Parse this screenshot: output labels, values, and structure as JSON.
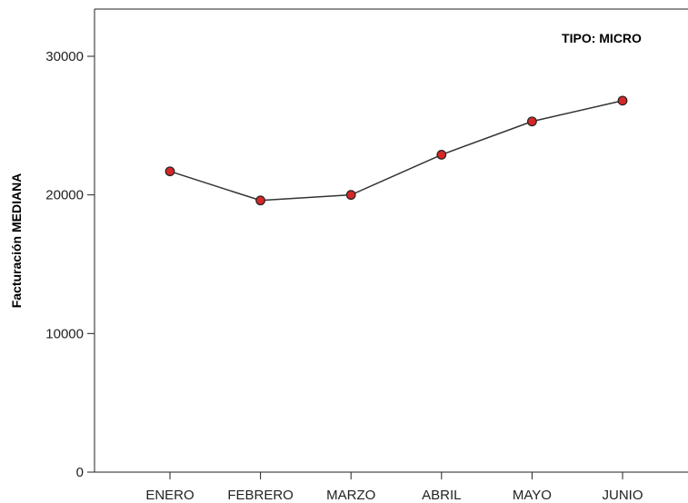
{
  "chart_data": {
    "type": "line",
    "title": "",
    "annotation": "TIPO: MICRO",
    "xlabel": "",
    "ylabel": "Facturación MEDIANA",
    "categories": [
      "ENERO",
      "FEBRERO",
      "MARZO",
      "ABRIL",
      "MAYO",
      "JUNIO"
    ],
    "series": [
      {
        "values": [
          21700,
          19600,
          20000,
          22900,
          25300,
          26800
        ]
      }
    ],
    "ylim": [
      0,
      33000
    ],
    "yticks": [
      0,
      10000,
      20000,
      30000
    ],
    "grid": false,
    "legend": "none",
    "colors": {
      "line": "#333333",
      "marker": "#d62728",
      "marker_edge": "#222222",
      "axis": "#222222"
    }
  }
}
